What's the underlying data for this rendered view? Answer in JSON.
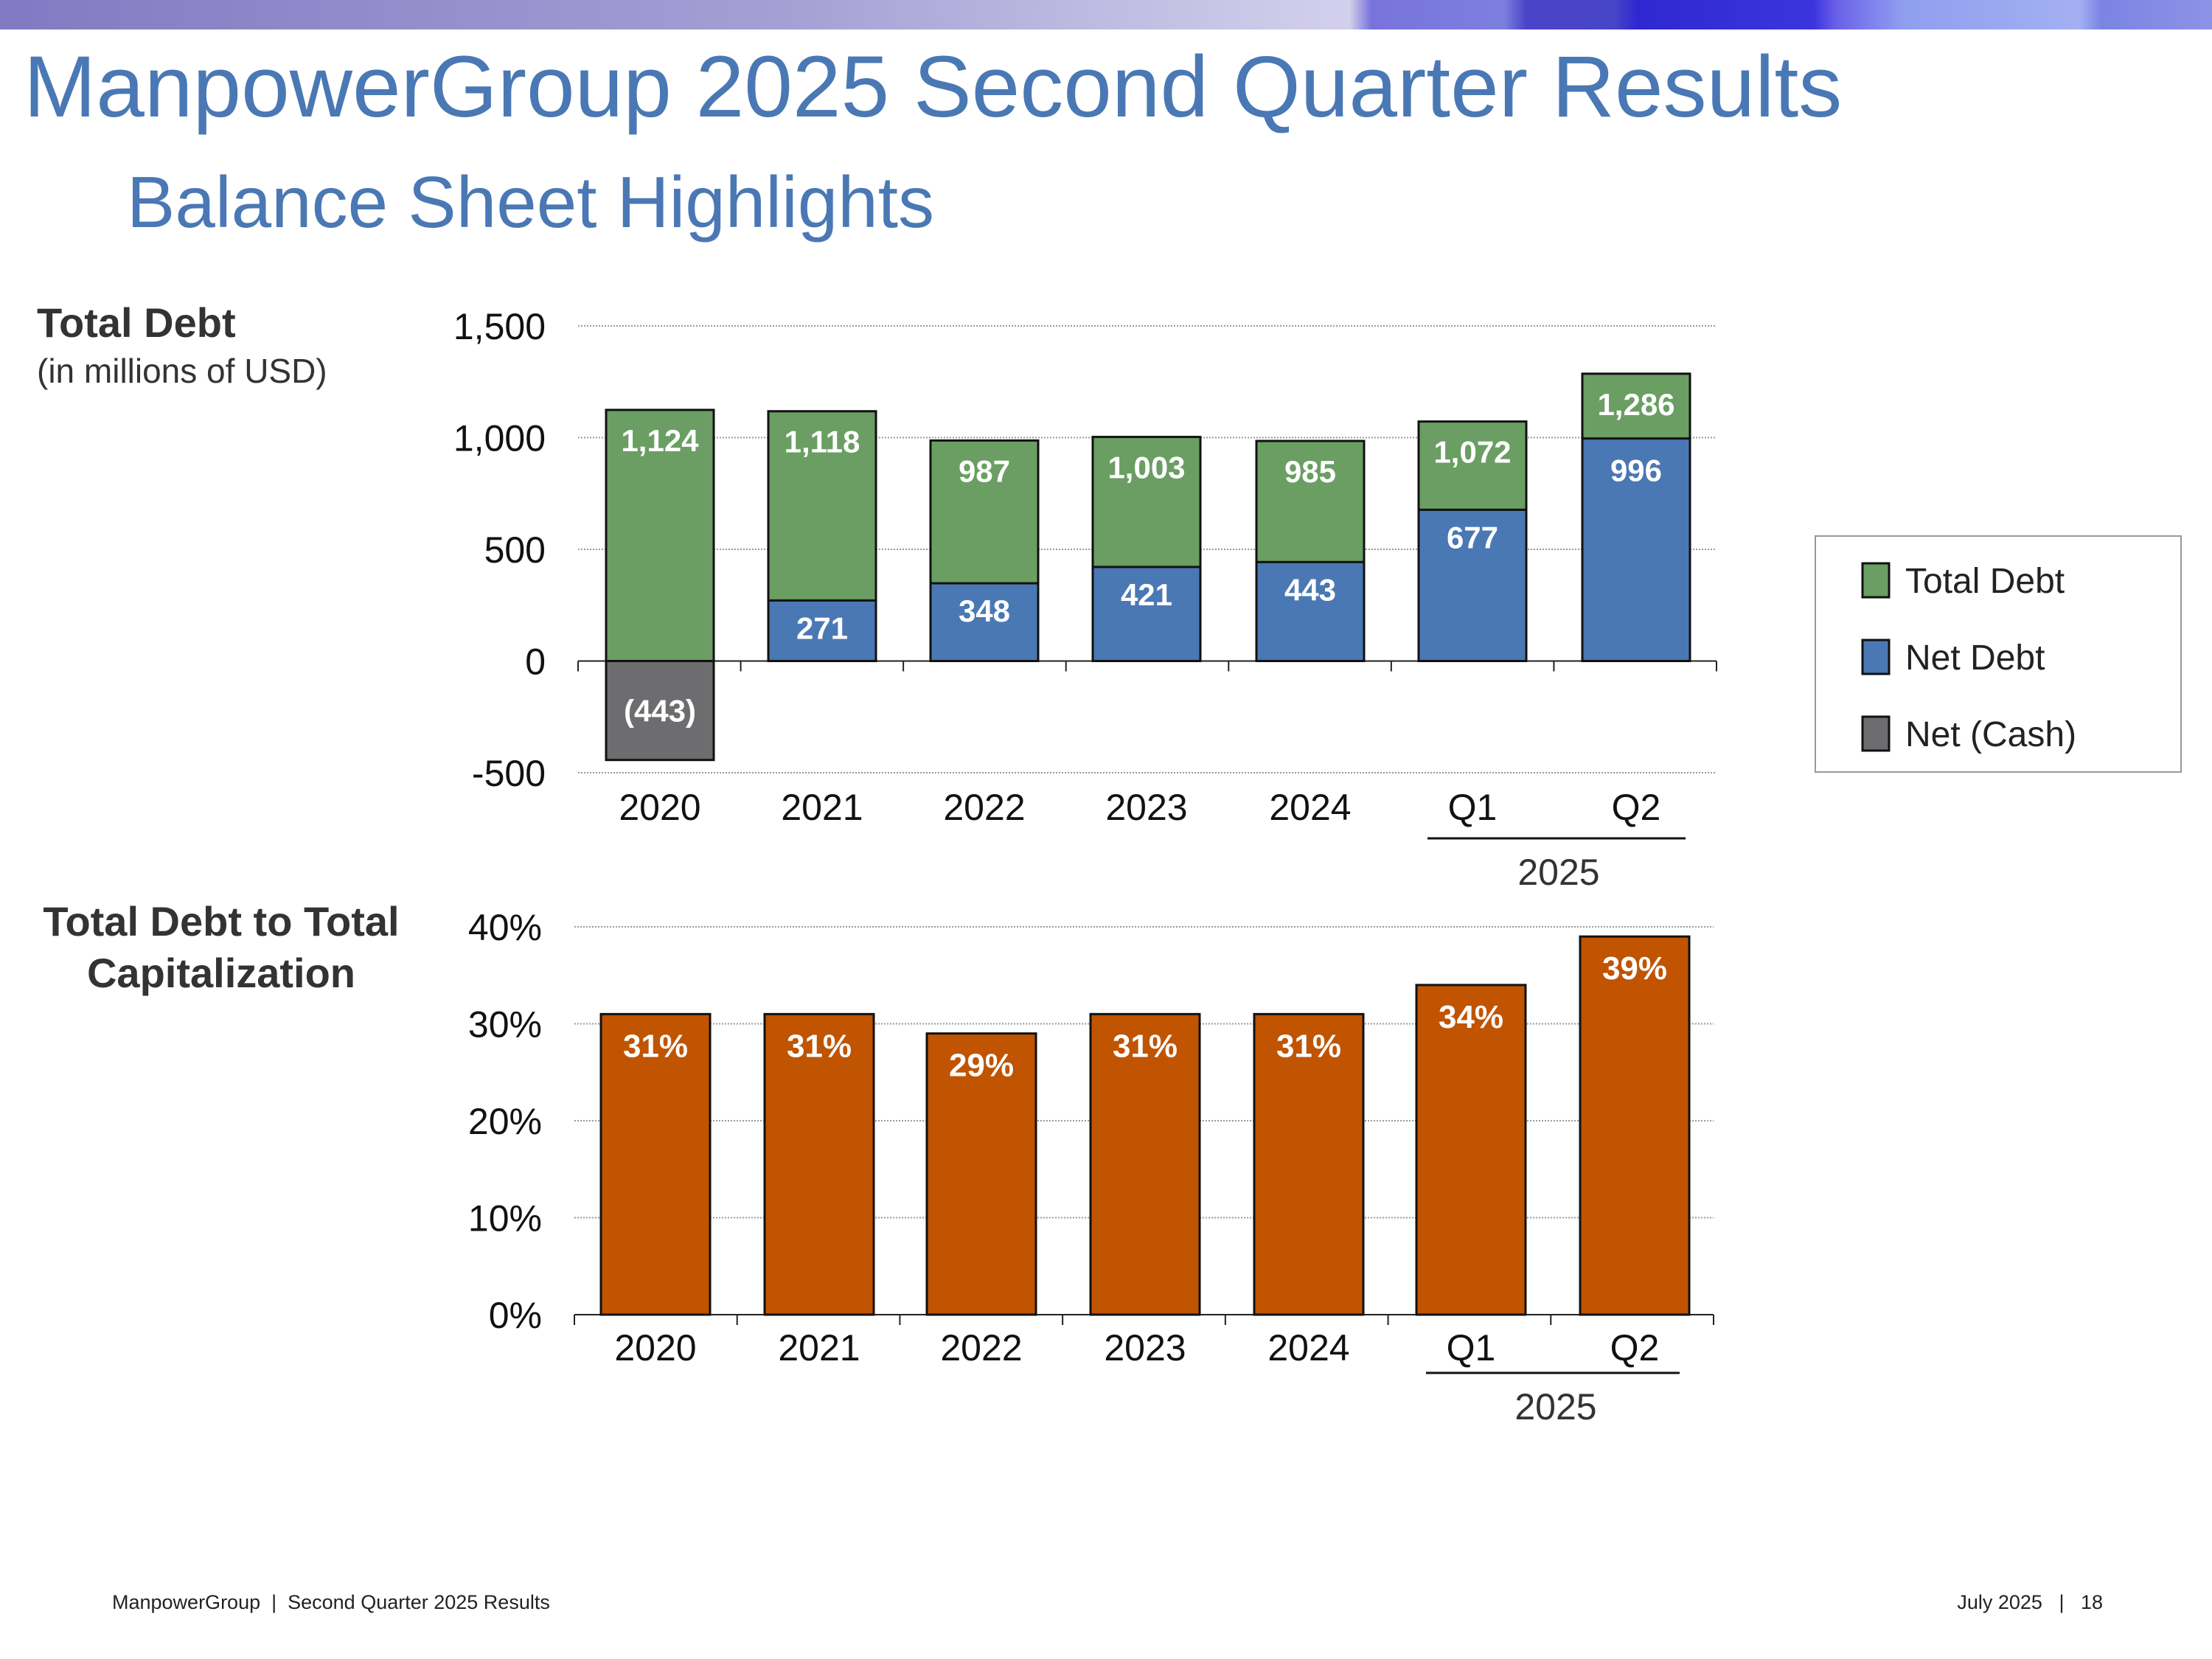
{
  "header": {
    "title": "ManpowerGroup 2025 Second Quarter Results",
    "subtitle": "Balance Sheet Highlights"
  },
  "footer": {
    "left": "ManpowerGroup  |  Second Quarter 2025 Results",
    "right": "July 2025   |   18"
  },
  "colors": {
    "total_debt": "#6a9e63",
    "net_debt": "#4a78b4",
    "net_cash": "#6d6d6f",
    "ratio": "#c05400",
    "title": "#4a78b4"
  },
  "chart_data": [
    {
      "type": "bar",
      "label": "Total Debt",
      "sublabel": "(in millions of USD)",
      "categories": [
        "2020",
        "2021",
        "2022",
        "2023",
        "2024",
        "Q1",
        "Q2"
      ],
      "group_label": "2025",
      "yticks": [
        "1,500",
        "1,000",
        "500",
        "0",
        "-500"
      ],
      "ylim": [
        -500,
        1500
      ],
      "grid": true,
      "legend_placement": "right",
      "series": [
        {
          "name": "Total Debt",
          "values": [
            1124,
            1118,
            987,
            1003,
            985,
            1072,
            1286
          ],
          "labels": [
            "1,124",
            "1,118",
            "987",
            "1,003",
            "985",
            "1,072",
            "1,286"
          ]
        },
        {
          "name": "Net Debt",
          "values": [
            null,
            271,
            348,
            421,
            443,
            677,
            996
          ],
          "labels": [
            "",
            "271",
            "348",
            "421",
            "443",
            "677",
            "996"
          ]
        },
        {
          "name": "Net (Cash)",
          "values": [
            -443,
            null,
            null,
            null,
            null,
            null,
            null
          ],
          "labels": [
            "(443)",
            "",
            "",
            "",
            "",
            "",
            ""
          ]
        }
      ]
    },
    {
      "type": "bar",
      "label": "Total Debt to Total Capitalization",
      "categories": [
        "2020",
        "2021",
        "2022",
        "2023",
        "2024",
        "Q1",
        "Q2"
      ],
      "group_label": "2025",
      "yticks": [
        "40%",
        "30%",
        "20%",
        "10%",
        "0%"
      ],
      "ylim": [
        0,
        40
      ],
      "grid": true,
      "values": [
        31,
        31,
        29,
        31,
        31,
        34,
        39
      ],
      "labels": [
        "31%",
        "31%",
        "29%",
        "31%",
        "31%",
        "34%",
        "39%"
      ]
    }
  ]
}
